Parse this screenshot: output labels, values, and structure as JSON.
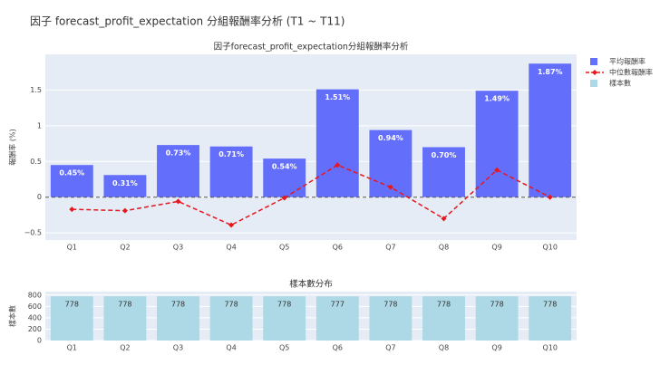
{
  "title": "因子 forecast_profit_expectation 分組報酬率分析 (T1 ~ T11)",
  "chart_data": [
    {
      "type": "bar",
      "title": "因子forecast_profit_expectation分組報酬率分析",
      "y_label": "報酬率 (%)",
      "categories": [
        "Q1",
        "Q2",
        "Q3",
        "Q4",
        "Q5",
        "Q6",
        "Q7",
        "Q8",
        "Q9",
        "Q10"
      ],
      "series": [
        {
          "name": "平均報酬率",
          "type": "bar",
          "color": "#636efa",
          "values": [
            0.45,
            0.31,
            0.73,
            0.71,
            0.54,
            1.51,
            0.94,
            0.7,
            1.49,
            1.87
          ],
          "value_labels": [
            "0.45%",
            "0.31%",
            "0.73%",
            "0.71%",
            "0.54%",
            "1.51%",
            "0.94%",
            "0.70%",
            "1.49%",
            "1.87%"
          ]
        },
        {
          "name": "中位數報酬率",
          "type": "line",
          "color": "#e8161d",
          "dash": true,
          "values": [
            -0.17,
            -0.19,
            -0.06,
            -0.39,
            -0.01,
            0.45,
            0.14,
            -0.3,
            0.38,
            0.0
          ]
        }
      ],
      "ylim": [
        -0.6,
        2.0
      ],
      "yticks": [
        {
          "value": -0.5,
          "label": "−0.5"
        },
        0,
        0.5,
        1,
        1.5
      ],
      "reference_line": 0,
      "grid": true
    },
    {
      "type": "bar",
      "title": "樣本數分布",
      "y_label": "樣本數",
      "categories": [
        "Q1",
        "Q2",
        "Q3",
        "Q4",
        "Q5",
        "Q6",
        "Q7",
        "Q8",
        "Q9",
        "Q10"
      ],
      "series": [
        {
          "name": "樣本數",
          "type": "bar",
          "color": "#add8e6",
          "values": [
            778,
            778,
            778,
            778,
            778,
            777,
            778,
            778,
            778,
            778
          ]
        }
      ],
      "ylim": [
        0,
        860
      ],
      "yticks": [
        0,
        200,
        400,
        600,
        800
      ],
      "grid": true
    }
  ]
}
